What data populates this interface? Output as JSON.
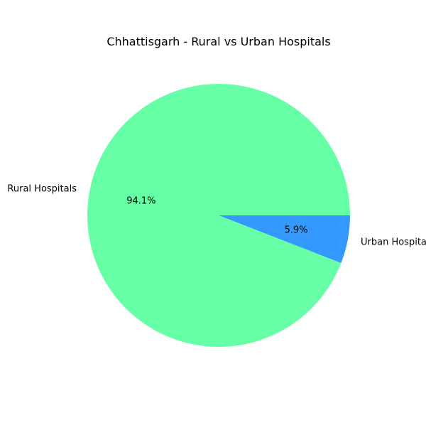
{
  "chart_data": {
    "type": "pie",
    "title": "Chhattisgarh - Rural vs Urban Hospitals",
    "categories": [
      "Rural Hospitals",
      "Urban Hospitals"
    ],
    "values": [
      94.1,
      5.9
    ],
    "percent_labels": [
      "94.1%",
      "5.9%"
    ],
    "colors": [
      "#66ffa6",
      "#3399ff"
    ],
    "start_angle_deg": 0,
    "direction": "counterclockwise"
  }
}
